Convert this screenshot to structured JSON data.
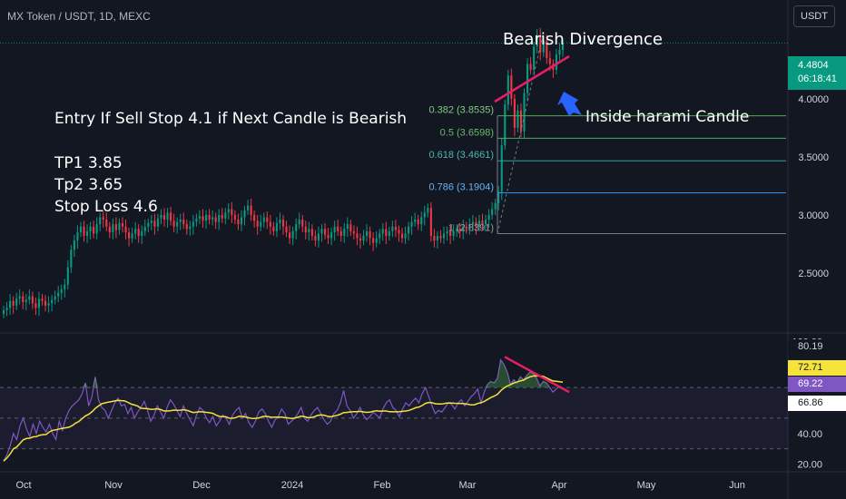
{
  "header": {
    "symbol": "MX Token / USDT, 1D, MEXC",
    "currency_button": "USDT"
  },
  "price_tag": {
    "price": "4.4804",
    "countdown": "06:18:41"
  },
  "annotations": {
    "title": "Bearish Divergence",
    "entry": "Entry If Sell Stop 4.1 if Next Candle is Bearish",
    "tp1": "TP1 3.85",
    "tp2": "Tp2 3.65",
    "stop_loss": "Stop Loss 4.6",
    "harami": "Inside harami Candle"
  },
  "colors": {
    "background": "#131722",
    "up": "#089981",
    "down": "#f23645",
    "rsi_line": "#7e57c2",
    "rsi_ma": "#f5e23b",
    "divergence": "#e91e63",
    "arrow": "#2962ff"
  },
  "chart_data": [
    {
      "type": "candlestick",
      "title": "MX Token / USDT, 1D, MEXC",
      "x_ticks": [
        "Oct",
        "Nov",
        "Dec",
        "2024",
        "Feb",
        "Mar",
        "Apr",
        "May",
        "Jun"
      ],
      "y_ticks": [
        2.5,
        3.0,
        3.5,
        4.0
      ],
      "ylim": [
        2.0,
        4.85
      ],
      "last_price": 4.4804,
      "closes": [
        2.18,
        2.2,
        2.26,
        2.22,
        2.28,
        2.3,
        2.25,
        2.27,
        2.3,
        2.24,
        2.2,
        2.28,
        2.26,
        2.22,
        2.24,
        2.27,
        2.3,
        2.33,
        2.36,
        2.4,
        2.55,
        2.7,
        2.78,
        2.85,
        2.9,
        2.82,
        2.86,
        2.9,
        2.84,
        2.92,
        2.98,
        2.96,
        2.9,
        2.85,
        2.92,
        2.87,
        2.93,
        2.9,
        2.85,
        2.8,
        2.84,
        2.88,
        2.82,
        2.86,
        2.9,
        2.93,
        2.95,
        2.9,
        2.97,
        3.0,
        2.96,
        3.02,
        2.95,
        2.9,
        2.94,
        2.96,
        2.92,
        2.88,
        2.9,
        2.94,
        2.97,
        2.99,
        2.95,
        3.0,
        2.96,
        2.98,
        2.94,
        3.0,
        2.97,
        3.02,
        3.05,
        3.0,
        2.96,
        2.92,
        2.98,
        3.04,
        3.08,
        3.0,
        2.95,
        2.9,
        2.94,
        2.98,
        2.94,
        2.9,
        2.86,
        2.93,
        2.96,
        2.9,
        2.85,
        2.8,
        2.86,
        2.92,
        2.96,
        2.9,
        2.85,
        2.88,
        2.82,
        2.78,
        2.84,
        2.88,
        2.83,
        2.8,
        2.85,
        2.9,
        2.86,
        2.82,
        2.88,
        2.92,
        2.86,
        2.84,
        2.8,
        2.78,
        2.82,
        2.86,
        2.8,
        2.76,
        2.8,
        2.84,
        2.88,
        2.82,
        2.86,
        2.9,
        2.87,
        2.84,
        2.8,
        2.84,
        2.9,
        2.94,
        2.96,
        2.92,
        2.98,
        3.02,
        3.06,
        2.82,
        2.78,
        2.82,
        2.8,
        2.84,
        2.86,
        2.82,
        2.86,
        2.88,
        2.86,
        2.9,
        2.88,
        2.92,
        2.94,
        2.9,
        2.95,
        2.92,
        2.96,
        3.0,
        3.05,
        3.1,
        3.2,
        3.6,
        3.95,
        4.2,
        4.0,
        3.75,
        3.9,
        3.72,
        4.05,
        4.3,
        4.25,
        4.45,
        4.55,
        4.4,
        4.5,
        4.35,
        4.3,
        4.25,
        4.38,
        4.42,
        4.4804
      ]
    },
    {
      "type": "line",
      "title": "Fibonacci retracement",
      "levels": [
        {
          "label": "0.382 (3.8535)",
          "value": 3.8535
        },
        {
          "label": "0.5 (3.6598)",
          "value": 3.6598
        },
        {
          "label": "0.618 (3.4661)",
          "value": 3.4661
        },
        {
          "label": "0.786 (3.1904)",
          "value": 3.1904
        },
        {
          "label": "1 (2.8391)",
          "value": 2.8391
        }
      ]
    },
    {
      "type": "line",
      "title": "RSI",
      "y_ticks": [
        100.0,
        40.0,
        20.0
      ],
      "ylim": [
        15,
        105
      ],
      "bands": [
        70,
        50,
        30
      ],
      "values": [
        22,
        26,
        32,
        40,
        36,
        45,
        50,
        43,
        38,
        46,
        40,
        48,
        44,
        41,
        46,
        40,
        36,
        48,
        42,
        50,
        55,
        58,
        60,
        62,
        66,
        73,
        58,
        64,
        77,
        62,
        57,
        55,
        50,
        55,
        60,
        63,
        58,
        59,
        53,
        57,
        50,
        54,
        57,
        61,
        55,
        48,
        52,
        58,
        54,
        50,
        57,
        62,
        59,
        55,
        51,
        58,
        53,
        49,
        45,
        52,
        57,
        55,
        50,
        47,
        51,
        45,
        48,
        52,
        50,
        46,
        52,
        55,
        57,
        50,
        53,
        47,
        44,
        48,
        54,
        56,
        53,
        48,
        44,
        49,
        51,
        56,
        53,
        46,
        48,
        50,
        53,
        57,
        50,
        48,
        52,
        55,
        57,
        53,
        49,
        46,
        48,
        53,
        55,
        60,
        68,
        58,
        55,
        50,
        53,
        57,
        52,
        49,
        51,
        54,
        52,
        50,
        56,
        60,
        62,
        57,
        55,
        51,
        56,
        60,
        58,
        61,
        63,
        60,
        66,
        70,
        64,
        58,
        53,
        55,
        54,
        57,
        60,
        59,
        56,
        60,
        62,
        58,
        61,
        64,
        66,
        69,
        60,
        67,
        72,
        74,
        73,
        76,
        88,
        85,
        80,
        72,
        75,
        73,
        77,
        75,
        78,
        80,
        79,
        76,
        71,
        74,
        73,
        70,
        67,
        69,
        71,
        69.22
      ],
      "series": [
        {
          "name": "RSI",
          "last": "69.22"
        },
        {
          "name": "RSI MA",
          "last": "72.71"
        }
      ],
      "tags": [
        "80.19",
        "72.71",
        "69.22",
        "66.86"
      ]
    }
  ]
}
